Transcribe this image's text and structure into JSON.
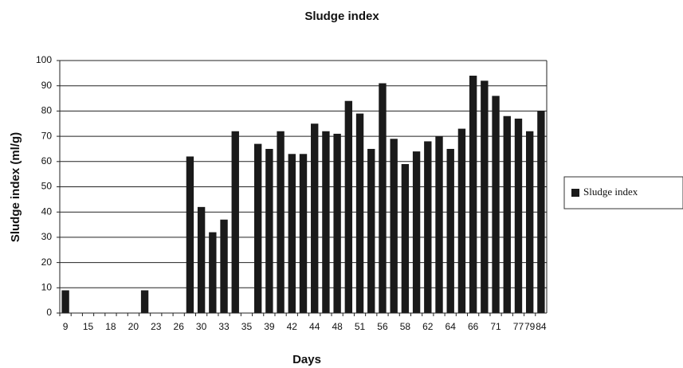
{
  "chart_data": {
    "type": "bar",
    "title": "Sludge index",
    "x_label": "Days",
    "y_label": "Sludge index (ml/g)",
    "categories": [
      "9",
      null,
      "15",
      null,
      "18",
      null,
      "20",
      null,
      "23",
      null,
      "26",
      null,
      "30",
      null,
      "33",
      null,
      "35",
      null,
      "39",
      null,
      "42",
      null,
      "44",
      null,
      "48",
      null,
      "51",
      null,
      "56",
      null,
      "58",
      null,
      "62",
      null,
      "64",
      null,
      "66",
      null,
      "71",
      null,
      "77",
      "79",
      "84"
    ],
    "series": [
      {
        "name": "Sludge index",
        "color": "#1a1a1a",
        "values": [
          9,
          0,
          0,
          0,
          0,
          0,
          0,
          9,
          0,
          0,
          0,
          62,
          42,
          32,
          37,
          72,
          0,
          67,
          65,
          72,
          63,
          63,
          75,
          72,
          71,
          84,
          79,
          65,
          91,
          69,
          59,
          64,
          68,
          70,
          65,
          73,
          94,
          92,
          86,
          78,
          77,
          72,
          80
        ]
      }
    ],
    "ylim": [
      0,
      100
    ],
    "yticks": [
      0,
      10,
      20,
      30,
      40,
      50,
      60,
      70,
      80,
      90,
      100
    ],
    "grid": true,
    "legend": "right"
  }
}
